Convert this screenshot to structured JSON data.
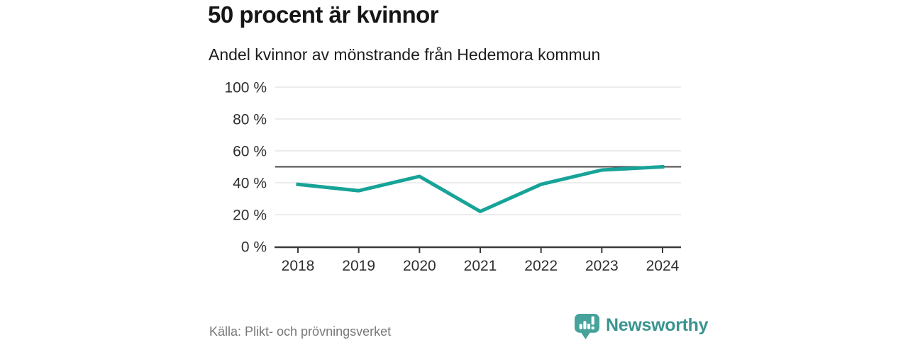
{
  "chart_data": {
    "type": "line",
    "title": "50 procent är kvinnor",
    "subtitle": "Andel kvinnor av mönstrande från Hedemora kommun",
    "x": [
      2018,
      2019,
      2020,
      2021,
      2022,
      2023,
      2024
    ],
    "series": [
      {
        "name": "Andel kvinnor av mönstrande",
        "values": [
          39,
          35,
          44,
          22,
          39,
          48,
          50
        ],
        "unit": "%"
      }
    ],
    "ylim": [
      0,
      100
    ],
    "y_ticks": [
      0,
      20,
      40,
      60,
      80,
      100
    ],
    "y_tick_suffix": " %",
    "reference_line": 50,
    "grid": true,
    "legend": "none",
    "colors": {
      "line": "#17a398",
      "reference": "#4a4a4a",
      "grid": "#e1e1e1",
      "axis": "#3a3a3a",
      "tick_label": "#2f2f2f"
    }
  },
  "footer": {
    "source": "Källa: Plikt- och prövningsverket",
    "brand": "Newsworthy",
    "brand_color": "#3a948f",
    "brand_icon_color": "#46a29b"
  }
}
